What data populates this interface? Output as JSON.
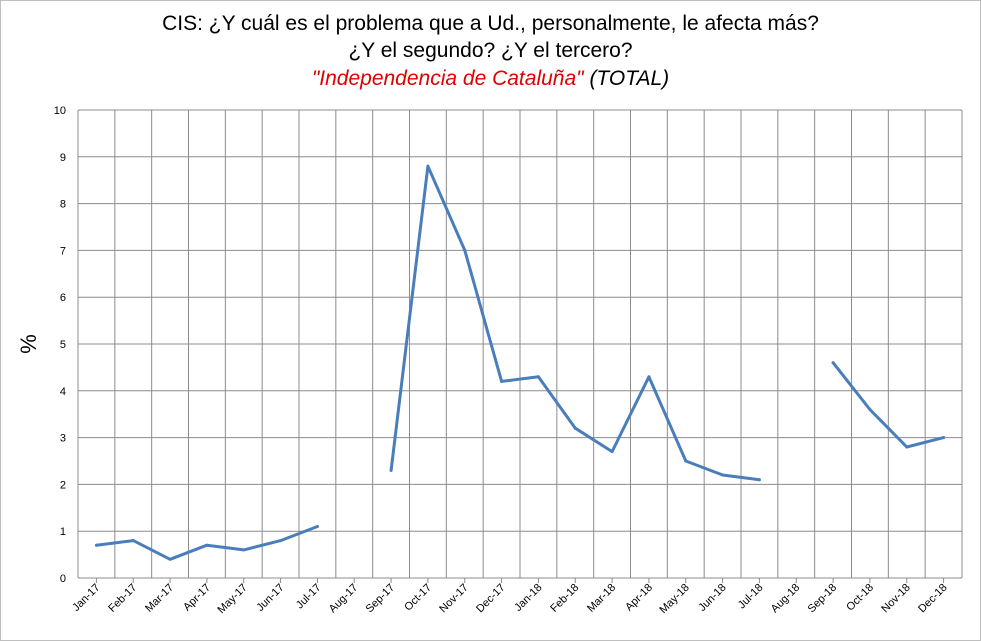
{
  "chart_data": {
    "type": "line",
    "title_line1": "CIS: ¿Y cuál es el problema que a Ud., personalmente, le afecta más?",
    "title_line2": "¿Y el segundo? ¿Y el tercero?",
    "subtitle_quoted": "\"Independencia de Cataluña\"",
    "subtitle_rest": " (TOTAL)",
    "xlabel": "",
    "ylabel": "%",
    "ylim": [
      0,
      10
    ],
    "yticks": [
      0,
      1,
      2,
      3,
      4,
      5,
      6,
      7,
      8,
      9,
      10
    ],
    "grid": true,
    "categories": [
      "Jan-17",
      "Feb-17",
      "Mar-17",
      "Apr-17",
      "May-17",
      "Jun-17",
      "Jul-17",
      "Aug-17",
      "Sep-17",
      "Oct-17",
      "Nov-17",
      "Dec-17",
      "Jan-18",
      "Feb-18",
      "Mar-18",
      "Apr-18",
      "May-18",
      "Jun-18",
      "Jul-18",
      "Aug-18",
      "Sep-18",
      "Oct-18",
      "Nov-18",
      "Dec-18"
    ],
    "series": [
      {
        "values": [
          0.7,
          0.8,
          0.4,
          0.7,
          0.6,
          0.8,
          1.1,
          null,
          2.3,
          8.8,
          7.0,
          4.2,
          4.3,
          3.2,
          2.7,
          4.3,
          2.5,
          2.2,
          2.1,
          null,
          4.6,
          3.6,
          2.8,
          3.0
        ],
        "color": "#4a7ebb"
      }
    ]
  },
  "colors": {
    "line": "#4a7ebb",
    "grid": "#8c8c8c",
    "highlight": "#e00000"
  }
}
